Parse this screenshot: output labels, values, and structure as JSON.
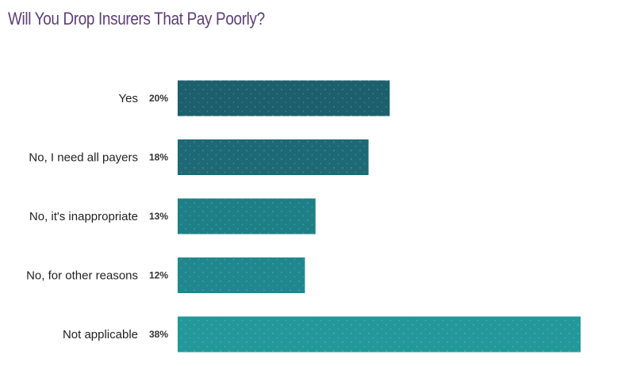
{
  "chart_data": {
    "type": "bar",
    "orientation": "horizontal",
    "title": "Will You Drop Insurers That Pay Poorly?",
    "categories": [
      "Yes",
      "No, I need all payers",
      "No, it's inappropriate",
      "No, for other reasons",
      "Not applicable"
    ],
    "values": [
      20,
      18,
      13,
      12,
      38
    ],
    "value_labels": [
      "20%",
      "18%",
      "13%",
      "12%",
      "38%"
    ],
    "unit": "%",
    "xlim": [
      0,
      38
    ],
    "grid": false,
    "legend": "none",
    "bar_colors": [
      "#1c5f6d",
      "#1d6a76",
      "#1e7f87",
      "#1f878d",
      "#22989a"
    ]
  }
}
